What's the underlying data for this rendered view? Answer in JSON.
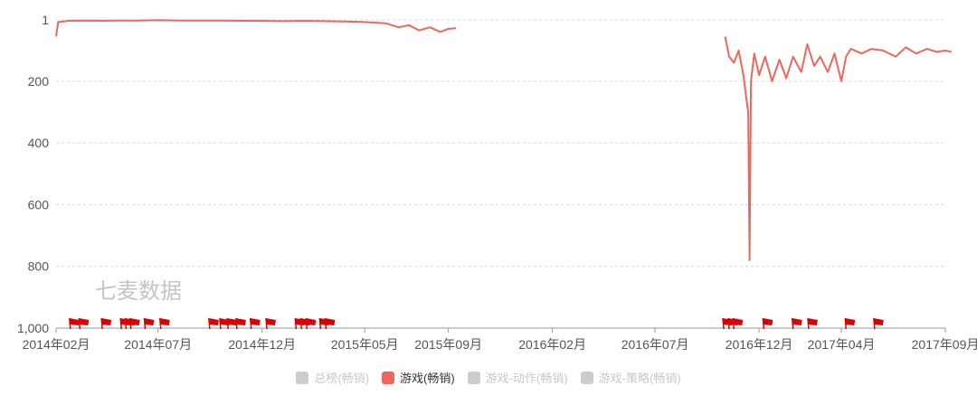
{
  "watermark": "七麦数据",
  "colors": {
    "series": "#f0665a",
    "flag": "#dd0000",
    "grid": "#d9d9d9",
    "axis": "#999999",
    "tick_text": "#555555",
    "legend_inactive": "#cccccc"
  },
  "chart_data": {
    "type": "line",
    "y_reversed": true,
    "ylim": [
      1,
      1000
    ],
    "ytick_values": [
      1,
      200,
      400,
      600,
      800,
      1000
    ],
    "yticks": [
      "1",
      "200",
      "400",
      "600",
      "800",
      "1,000"
    ],
    "x_range": [
      "2014-02",
      "2017-09"
    ],
    "xticks": [
      "2014年02月",
      "2014年07月",
      "2014年12月",
      "2015年05月",
      "2015年09月",
      "2016年02月",
      "2016年07月",
      "2016年12月",
      "2017年04月",
      "2017年09月"
    ],
    "xtick_dates": [
      "2014-02",
      "2014-07",
      "2014-12",
      "2015-05",
      "2015-09",
      "2016-02",
      "2016-07",
      "2016-12",
      "2017-04",
      "2017-09"
    ],
    "grid": true,
    "legend_position": "bottom",
    "legend": [
      {
        "name": "总榜(畅销)",
        "active": false
      },
      {
        "name": "游戏(畅销)",
        "active": true
      },
      {
        "name": "游戏-动作(畅销)",
        "active": false
      },
      {
        "name": "游戏-策略(畅销)",
        "active": false
      }
    ],
    "series": [
      {
        "name": "游戏(畅销)",
        "points": [
          [
            "2014-02-01",
            55
          ],
          [
            "2014-02-04",
            8
          ],
          [
            "2014-02-20",
            4
          ],
          [
            "2014-03-15",
            3
          ],
          [
            "2014-04-10",
            4
          ],
          [
            "2014-05-01",
            3
          ],
          [
            "2014-06-01",
            3
          ],
          [
            "2014-07-01",
            2
          ],
          [
            "2014-08-01",
            3
          ],
          [
            "2014-09-01",
            3
          ],
          [
            "2014-10-01",
            3
          ],
          [
            "2014-11-01",
            4
          ],
          [
            "2014-12-01",
            4
          ],
          [
            "2015-01-01",
            5
          ],
          [
            "2015-02-01",
            4
          ],
          [
            "2015-03-01",
            5
          ],
          [
            "2015-04-01",
            6
          ],
          [
            "2015-05-01",
            8
          ],
          [
            "2015-06-01",
            12
          ],
          [
            "2015-06-20",
            25
          ],
          [
            "2015-07-05",
            18
          ],
          [
            "2015-07-20",
            35
          ],
          [
            "2015-08-05",
            25
          ],
          [
            "2015-08-20",
            40
          ],
          [
            "2015-09-01",
            30
          ],
          [
            "2015-09-12",
            28
          ],
          null,
          [
            "2016-10-12",
            55
          ],
          [
            "2016-10-18",
            120
          ],
          [
            "2016-10-25",
            140
          ],
          [
            "2016-11-01",
            100
          ],
          [
            "2016-11-08",
            180
          ],
          [
            "2016-11-12",
            250
          ],
          [
            "2016-11-15",
            300
          ],
          [
            "2016-11-17",
            780
          ],
          [
            "2016-11-19",
            200
          ],
          [
            "2016-11-24",
            110
          ],
          [
            "2016-12-01",
            180
          ],
          [
            "2016-12-10",
            120
          ],
          [
            "2016-12-20",
            200
          ],
          [
            "2016-12-31",
            130
          ],
          [
            "2017-01-10",
            190
          ],
          [
            "2017-01-20",
            120
          ],
          [
            "2017-02-01",
            170
          ],
          [
            "2017-02-10",
            80
          ],
          [
            "2017-02-20",
            150
          ],
          [
            "2017-03-01",
            120
          ],
          [
            "2017-03-12",
            170
          ],
          [
            "2017-03-22",
            110
          ],
          [
            "2017-04-01",
            200
          ],
          [
            "2017-04-08",
            120
          ],
          [
            "2017-04-15",
            95
          ],
          [
            "2017-05-01",
            110
          ],
          [
            "2017-05-15",
            95
          ],
          [
            "2017-06-01",
            100
          ],
          [
            "2017-06-20",
            120
          ],
          [
            "2017-07-05",
            90
          ],
          [
            "2017-07-20",
            110
          ],
          [
            "2017-08-05",
            95
          ],
          [
            "2017-08-20",
            105
          ],
          [
            "2017-09-01",
            100
          ],
          [
            "2017-09-10",
            105
          ]
        ]
      }
    ],
    "event_flags": [
      "2014-02-22",
      "2014-03-08",
      "2014-04-10",
      "2014-05-08",
      "2014-05-15",
      "2014-05-22",
      "2014-06-12",
      "2014-07-05",
      "2014-09-15",
      "2014-10-01",
      "2014-10-12",
      "2014-10-25",
      "2014-11-15",
      "2014-12-08",
      "2015-01-20",
      "2015-01-28",
      "2015-02-05",
      "2015-02-25",
      "2015-03-05",
      "2016-10-10",
      "2016-10-18",
      "2016-10-25",
      "2016-12-08",
      "2017-01-20",
      "2017-02-12",
      "2017-04-08",
      "2017-05-20"
    ]
  }
}
